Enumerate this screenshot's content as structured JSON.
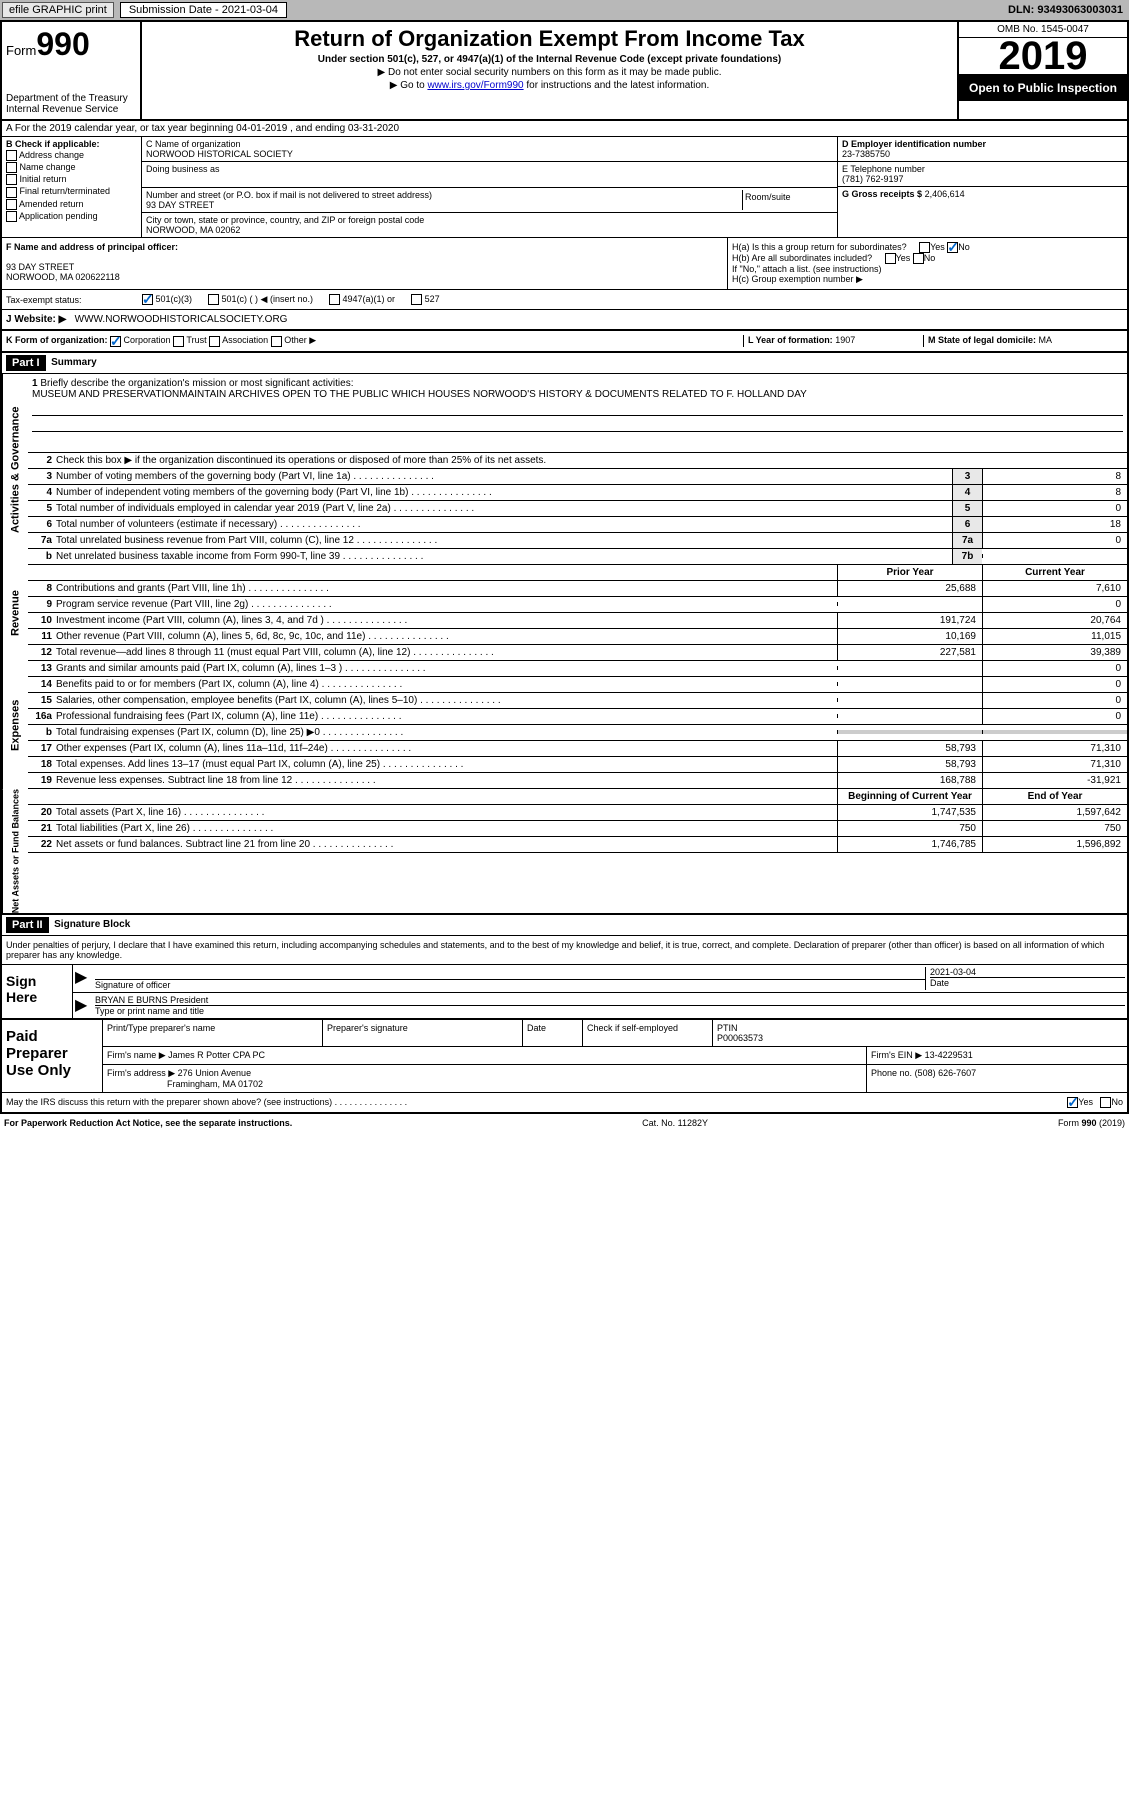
{
  "topbar": {
    "efile": "efile GRAPHIC print",
    "subdate_label": "Submission Date - 2021-03-04",
    "dln": "DLN: 93493063003031"
  },
  "header": {
    "form_label": "Form",
    "form_num": "990",
    "dept": "Department of the Treasury\nInternal Revenue Service",
    "title": "Return of Organization Exempt From Income Tax",
    "subtitle": "Under section 501(c), 527, or 4947(a)(1) of the Internal Revenue Code (except private foundations)",
    "note1": "▶ Do not enter social security numbers on this form as it may be made public.",
    "note2_pre": "▶ Go to ",
    "note2_link": "www.irs.gov/Form990",
    "note2_post": " for instructions and the latest information.",
    "omb": "OMB No. 1545-0047",
    "year": "2019",
    "inspect": "Open to Public Inspection"
  },
  "section_a": "A   For the 2019 calendar year, or tax year beginning 04-01-2019    , and ending 03-31-2020",
  "box_b": {
    "label": "B Check if applicable:",
    "opts": [
      "Address change",
      "Name change",
      "Initial return",
      "Final return/terminated",
      "Amended return",
      "Application pending"
    ]
  },
  "box_c": {
    "name_label": "C Name of organization",
    "name": "NORWOOD HISTORICAL SOCIETY",
    "dba_label": "Doing business as",
    "addr_label": "Number and street (or P.O. box if mail is not delivered to street address)",
    "room_label": "Room/suite",
    "addr": "93 DAY STREET",
    "city_label": "City or town, state or province, country, and ZIP or foreign postal code",
    "city": "NORWOOD, MA  02062"
  },
  "box_d": {
    "label": "D Employer identification number",
    "val": "23-7385750"
  },
  "box_e": {
    "label": "E Telephone number",
    "val": "(781) 762-9197"
  },
  "box_g": {
    "label": "G Gross receipts $",
    "val": "2,406,614"
  },
  "box_f": {
    "label": "F Name and address of principal officer:",
    "addr1": "93 DAY STREET",
    "addr2": "NORWOOD, MA  020622118"
  },
  "box_h": {
    "a": "H(a)  Is this a group return for subordinates?",
    "b": "H(b)  Are all subordinates included?",
    "b_note": "If \"No,\" attach a list. (see instructions)",
    "c": "H(c)  Group exemption number ▶"
  },
  "tax_exempt": {
    "label": "Tax-exempt status:",
    "o1": "501(c)(3)",
    "o2": "501(c) (   ) ◀ (insert no.)",
    "o3": "4947(a)(1) or",
    "o4": "527"
  },
  "box_j": {
    "label": "J     Website: ▶",
    "val": "WWW.NORWOODHISTORICALSOCIETY.ORG"
  },
  "box_k": {
    "label": "K Form of organization:",
    "corp": "Corporation",
    "trust": "Trust",
    "assoc": "Association",
    "other": "Other ▶"
  },
  "box_l": {
    "label": "L Year of formation:",
    "val": "1907"
  },
  "box_m": {
    "label": "M State of legal domicile:",
    "val": "MA"
  },
  "part1": {
    "header": "Part I",
    "title": "Summary",
    "q1": "Briefly describe the organization's mission or most significant activities:",
    "q1_text": "MUSEUM AND PRESERVATIONMAINTAIN ARCHIVES OPEN TO THE PUBLIC WHICH HOUSES NORWOOD'S HISTORY & DOCUMENTS RELATED TO F. HOLLAND DAY",
    "q2": "Check this box ▶         if the organization discontinued its operations or disposed of more than 25% of its net assets.",
    "rows_gov": [
      {
        "n": "3",
        "label": "Number of voting members of the governing body (Part VI, line 1a)",
        "box": "3",
        "val": "8"
      },
      {
        "n": "4",
        "label": "Number of independent voting members of the governing body (Part VI, line 1b)",
        "box": "4",
        "val": "8"
      },
      {
        "n": "5",
        "label": "Total number of individuals employed in calendar year 2019 (Part V, line 2a)",
        "box": "5",
        "val": "0"
      },
      {
        "n": "6",
        "label": "Total number of volunteers (estimate if necessary)",
        "box": "6",
        "val": "18"
      },
      {
        "n": "7a",
        "label": "Total unrelated business revenue from Part VIII, column (C), line 12",
        "box": "7a",
        "val": "0"
      },
      {
        "n": "b",
        "label": "Net unrelated business taxable income from Form 990-T, line 39",
        "box": "7b",
        "val": ""
      }
    ],
    "prior": "Prior Year",
    "current": "Current Year",
    "rows_rev": [
      {
        "n": "8",
        "label": "Contributions and grants (Part VIII, line 1h)",
        "py": "25,688",
        "cy": "7,610"
      },
      {
        "n": "9",
        "label": "Program service revenue (Part VIII, line 2g)",
        "py": "",
        "cy": "0"
      },
      {
        "n": "10",
        "label": "Investment income (Part VIII, column (A), lines 3, 4, and 7d )",
        "py": "191,724",
        "cy": "20,764"
      },
      {
        "n": "11",
        "label": "Other revenue (Part VIII, column (A), lines 5, 6d, 8c, 9c, 10c, and 11e)",
        "py": "10,169",
        "cy": "11,015"
      },
      {
        "n": "12",
        "label": "Total revenue—add lines 8 through 11 (must equal Part VIII, column (A), line 12)",
        "py": "227,581",
        "cy": "39,389"
      }
    ],
    "rows_exp": [
      {
        "n": "13",
        "label": "Grants and similar amounts paid (Part IX, column (A), lines 1–3 )",
        "py": "",
        "cy": "0"
      },
      {
        "n": "14",
        "label": "Benefits paid to or for members (Part IX, column (A), line 4)",
        "py": "",
        "cy": "0"
      },
      {
        "n": "15",
        "label": "Salaries, other compensation, employee benefits (Part IX, column (A), lines 5–10)",
        "py": "",
        "cy": "0"
      },
      {
        "n": "16a",
        "label": "Professional fundraising fees (Part IX, column (A), line 11e)",
        "py": "",
        "cy": "0"
      },
      {
        "n": "b",
        "label": "Total fundraising expenses (Part IX, column (D), line 25) ▶0",
        "py": "GREY",
        "cy": "GREY"
      },
      {
        "n": "17",
        "label": "Other expenses (Part IX, column (A), lines 11a–11d, 11f–24e)",
        "py": "58,793",
        "cy": "71,310"
      },
      {
        "n": "18",
        "label": "Total expenses. Add lines 13–17 (must equal Part IX, column (A), line 25)",
        "py": "58,793",
        "cy": "71,310"
      },
      {
        "n": "19",
        "label": "Revenue less expenses. Subtract line 18 from line 12",
        "py": "168,788",
        "cy": "-31,921"
      }
    ],
    "begin": "Beginning of Current Year",
    "end": "End of Year",
    "rows_net": [
      {
        "n": "20",
        "label": "Total assets (Part X, line 16)",
        "py": "1,747,535",
        "cy": "1,597,642"
      },
      {
        "n": "21",
        "label": "Total liabilities (Part X, line 26)",
        "py": "750",
        "cy": "750"
      },
      {
        "n": "22",
        "label": "Net assets or fund balances. Subtract line 21 from line 20",
        "py": "1,746,785",
        "cy": "1,596,892"
      }
    ]
  },
  "sidelabels": {
    "gov": "Activities & Governance",
    "rev": "Revenue",
    "exp": "Expenses",
    "net": "Net Assets or Fund Balances"
  },
  "part2": {
    "header": "Part II",
    "title": "Signature Block",
    "penalty": "Under penalties of perjury, I declare that I have examined this return, including accompanying schedules and statements, and to the best of my knowledge and belief, it is true, correct, and complete. Declaration of preparer (other than officer) is based on all information of which preparer has any knowledge.",
    "sign_here": "Sign Here",
    "sig_officer": "Signature of officer",
    "date": "Date",
    "date_val": "2021-03-04",
    "name": "BRYAN E BURNS President",
    "name_label": "Type or print name and title"
  },
  "paid": {
    "label": "Paid Preparer Use Only",
    "col1": "Print/Type preparer's name",
    "col2": "Preparer's signature",
    "col3": "Date",
    "col4_label": "Check         if self-employed",
    "col5_label": "PTIN",
    "col5_val": "P00063573",
    "firm_label": "Firm's name    ▶",
    "firm_val": "James R Potter CPA PC",
    "ein_label": "Firm's EIN ▶",
    "ein_val": "13-4229531",
    "addr_label": "Firm's address ▶",
    "addr_val1": "276 Union Avenue",
    "addr_val2": "Framingham, MA  01702",
    "phone_label": "Phone no.",
    "phone_val": "(508) 626-7607"
  },
  "footer": {
    "discuss": "May the IRS discuss this return with the preparer shown above? (see instructions)",
    "paperwork": "For Paperwork Reduction Act Notice, see the separate instructions.",
    "cat": "Cat. No. 11282Y",
    "form": "Form 990 (2019)"
  }
}
